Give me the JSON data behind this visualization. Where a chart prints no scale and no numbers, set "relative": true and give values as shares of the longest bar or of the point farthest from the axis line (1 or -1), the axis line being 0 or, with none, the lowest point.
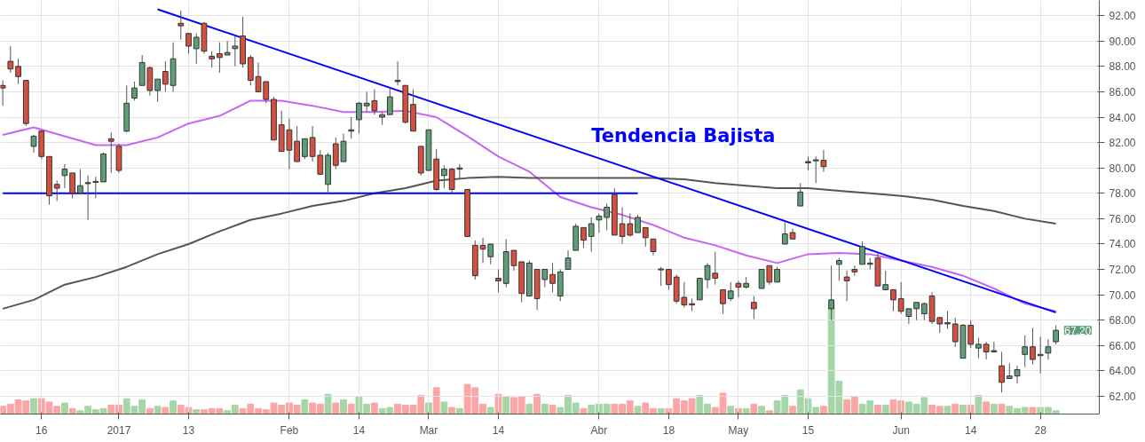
{
  "chart_data": [
    {
      "type": "candlestick",
      "categories": [
        null,
        null,
        null,
        null,
        null,
        "16",
        null,
        null,
        null,
        null,
        null,
        null,
        null,
        null,
        null,
        "2017",
        null,
        null,
        null,
        null,
        null,
        null,
        null,
        null,
        "13",
        null,
        null,
        null,
        null,
        null,
        null,
        null,
        null,
        null,
        null,
        null,
        null,
        "Feb",
        null,
        null,
        null,
        null,
        null,
        null,
        null,
        null,
        "14",
        null,
        null,
        null,
        null,
        null,
        null,
        null,
        null,
        "Mar",
        null,
        null,
        null,
        null,
        null,
        null,
        null,
        null,
        "14",
        null,
        null,
        null,
        null,
        null,
        null,
        null,
        null,
        null,
        null,
        null,
        null,
        "Abr",
        null,
        null,
        null,
        null,
        null,
        null,
        null,
        null,
        "18",
        null,
        null,
        null,
        null,
        null,
        null,
        null,
        null,
        "May",
        null,
        null,
        null,
        null,
        null,
        null,
        null,
        null,
        "15",
        null,
        null,
        null,
        null,
        null,
        null,
        null,
        null,
        null,
        null,
        null,
        "Jun",
        null,
        null,
        null,
        null,
        null,
        null,
        null,
        null,
        "14",
        null,
        null,
        null,
        null,
        null,
        null,
        null,
        null,
        "28",
        null,
        null
      ],
      "ohlc": [
        [
          86.5,
          86.9,
          84.9,
          86.3
        ],
        [
          88.4,
          89.6,
          87.5,
          87.8
        ],
        [
          88.0,
          88.6,
          86.6,
          87.2
        ],
        [
          86.9,
          86.9,
          83.3,
          83.5
        ],
        [
          81.7,
          82.6,
          81.2,
          82.5
        ],
        [
          82.9,
          82.9,
          80.7,
          80.9
        ],
        [
          80.9,
          80.9,
          77.1,
          77.8
        ],
        [
          78.7,
          79.0,
          77.4,
          78.4
        ],
        [
          79.4,
          80.3,
          78.4,
          79.9
        ],
        [
          79.6,
          79.6,
          77.6,
          78.0
        ],
        [
          78.0,
          79.9,
          77.9,
          78.6
        ],
        [
          78.8,
          79.4,
          75.9,
          78.8
        ],
        [
          78.9,
          79.3,
          77.6,
          78.9
        ],
        [
          78.9,
          81.2,
          78.9,
          81.1
        ],
        [
          82.3,
          82.8,
          79.6,
          82.1
        ],
        [
          81.7,
          81.9,
          79.6,
          79.8
        ],
        [
          82.9,
          86.5,
          82.8,
          85.1
        ],
        [
          85.5,
          86.8,
          85.3,
          86.3
        ],
        [
          86.5,
          88.9,
          86.5,
          88.3
        ],
        [
          87.9,
          88.0,
          85.7,
          86.1
        ],
        [
          86.1,
          87.0,
          85.2,
          87.0
        ],
        [
          87.6,
          88.4,
          86.0,
          86.6
        ],
        [
          86.5,
          89.9,
          86.0,
          88.6
        ],
        [
          91.4,
          92.4,
          90.1,
          91.2
        ],
        [
          90.6,
          90.6,
          89.0,
          89.6
        ],
        [
          89.4,
          90.6,
          88.2,
          90.3
        ],
        [
          91.4,
          91.5,
          89.0,
          89.2
        ],
        [
          88.8,
          89.2,
          87.9,
          88.6
        ],
        [
          89.0,
          89.9,
          87.5,
          88.7
        ],
        [
          88.9,
          90.0,
          88.9,
          89.1
        ],
        [
          89.4,
          90.4,
          88.0,
          89.6
        ],
        [
          90.4,
          91.9,
          87.9,
          88.2
        ],
        [
          88.7,
          88.9,
          86.5,
          86.9
        ],
        [
          87.2,
          88.3,
          86.0,
          86.0
        ],
        [
          86.8,
          86.8,
          85.1,
          85.4
        ],
        [
          85.4,
          85.6,
          82.2,
          82.2
        ],
        [
          83.4,
          84.5,
          81.3,
          81.3
        ],
        [
          83.0,
          83.9,
          79.9,
          81.4
        ],
        [
          82.1,
          83.3,
          80.5,
          80.5
        ],
        [
          80.9,
          82.3,
          80.7,
          82.3
        ],
        [
          82.4,
          83.3,
          80.5,
          80.9
        ],
        [
          81.0,
          81.4,
          79.5,
          79.5
        ],
        [
          78.7,
          81.2,
          78.0,
          81.0
        ],
        [
          81.9,
          82.4,
          79.9,
          80.2
        ],
        [
          80.5,
          82.7,
          80.5,
          82.1
        ],
        [
          83.0,
          84.0,
          82.3,
          82.9
        ],
        [
          83.8,
          85.2,
          82.7,
          85.1
        ],
        [
          84.9,
          86.0,
          84.4,
          85.1
        ],
        [
          85.3,
          86.2,
          84.2,
          84.5
        ],
        [
          84.0,
          84.4,
          83.4,
          84.2
        ],
        [
          84.2,
          86.3,
          84.2,
          85.6
        ],
        [
          86.9,
          88.4,
          86.5,
          86.8
        ],
        [
          86.5,
          86.5,
          83.5,
          83.6
        ],
        [
          85.0,
          86.2,
          82.9,
          82.9
        ],
        [
          81.7,
          81.7,
          79.4,
          79.6
        ],
        [
          79.8,
          83.0,
          79.8,
          83.0
        ],
        [
          80.7,
          81.5,
          78.2,
          78.3
        ],
        [
          79.4,
          80.2,
          78.4,
          79.9
        ],
        [
          79.9,
          80.0,
          78.0,
          78.3
        ],
        [
          79.9,
          80.3,
          79.1,
          80.0
        ],
        [
          78.3,
          78.3,
          74.6,
          74.6
        ],
        [
          73.9,
          74.3,
          71.2,
          71.5
        ],
        [
          73.9,
          74.5,
          72.5,
          73.6
        ],
        [
          73.0,
          74.0,
          72.4,
          74.0
        ],
        [
          71.3,
          72.0,
          70.2,
          71.1
        ],
        [
          70.9,
          74.4,
          70.6,
          73.4
        ],
        [
          73.5,
          73.5,
          71.9,
          72.3
        ],
        [
          72.6,
          72.6,
          69.4,
          70.1
        ],
        [
          69.9,
          72.7,
          69.9,
          72.5
        ],
        [
          72.0,
          72.0,
          68.8,
          69.7
        ],
        [
          71.2,
          72.0,
          70.6,
          72.0
        ],
        [
          71.6,
          72.5,
          70.2,
          70.9
        ],
        [
          69.9,
          72.0,
          69.5,
          71.8
        ],
        [
          72.0,
          73.5,
          72.0,
          72.9
        ],
        [
          73.5,
          75.6,
          73.5,
          75.4
        ],
        [
          75.3,
          75.3,
          73.7,
          74.3
        ],
        [
          74.6,
          76.1,
          73.4,
          75.6
        ],
        [
          75.9,
          76.4,
          74.9,
          76.2
        ],
        [
          76.1,
          77.2,
          75.1,
          76.9
        ],
        [
          77.9,
          78.4,
          74.7,
          74.7
        ],
        [
          75.6,
          76.9,
          74.0,
          74.6
        ],
        [
          75.6,
          76.4,
          74.6,
          74.7
        ],
        [
          74.9,
          76.3,
          74.9,
          76.1
        ],
        [
          75.3,
          75.3,
          73.8,
          74.5
        ],
        [
          74.4,
          74.4,
          73.1,
          73.4
        ],
        [
          72.0,
          72.2,
          70.7,
          72.0
        ],
        [
          72.0,
          72.0,
          70.4,
          70.8
        ],
        [
          71.4,
          71.6,
          69.3,
          69.5
        ],
        [
          69.8,
          71.0,
          69.0,
          69.2
        ],
        [
          69.3,
          69.7,
          68.7,
          69.2
        ],
        [
          69.6,
          71.3,
          69.6,
          71.3
        ],
        [
          71.2,
          72.5,
          70.5,
          72.3
        ],
        [
          71.7,
          73.4,
          70.8,
          71.3
        ],
        [
          70.4,
          70.4,
          68.5,
          69.3
        ],
        [
          69.7,
          71.0,
          69.5,
          70.3
        ],
        [
          70.9,
          71.1,
          69.8,
          70.6
        ],
        [
          70.6,
          71.4,
          70.5,
          70.9
        ],
        [
          69.4,
          69.9,
          68.1,
          68.9
        ],
        [
          70.5,
          72.0,
          70.5,
          72.0
        ],
        [
          72.3,
          72.3,
          70.8,
          71.0
        ],
        [
          71.0,
          72.2,
          71.0,
          72.0
        ],
        [
          74.0,
          75.7,
          74.0,
          74.8
        ],
        [
          74.9,
          75.2,
          74.4,
          74.4
        ],
        [
          77.0,
          78.8,
          77.0,
          78.1
        ],
        [
          80.4,
          80.9,
          79.8,
          80.5
        ],
        [
          80.6,
          80.9,
          78.8,
          80.6
        ],
        [
          80.6,
          81.4,
          79.7,
          80.1
        ],
        [
          68.9,
          72.3,
          68.0,
          69.6
        ],
        [
          72.4,
          72.9,
          71.1,
          72.7
        ],
        [
          71.4,
          71.9,
          69.5,
          71.1
        ],
        [
          72.0,
          72.3,
          71.5,
          71.8
        ],
        [
          72.4,
          74.2,
          72.4,
          73.8
        ],
        [
          72.4,
          72.9,
          72.0,
          72.5
        ],
        [
          72.9,
          73.4,
          70.7,
          70.7
        ],
        [
          70.4,
          71.9,
          70.4,
          70.8
        ],
        [
          70.4,
          70.4,
          68.7,
          69.6
        ],
        [
          69.7,
          71.0,
          68.5,
          68.7
        ],
        [
          68.3,
          68.9,
          67.7,
          68.9
        ],
        [
          68.9,
          69.4,
          68.0,
          69.4
        ],
        [
          68.5,
          69.4,
          68.0,
          69.3
        ],
        [
          69.9,
          70.2,
          67.7,
          67.9
        ],
        [
          68.2,
          68.2,
          67.0,
          67.7
        ],
        [
          67.7,
          68.7,
          67.3,
          67.8
        ],
        [
          67.7,
          68.2,
          65.9,
          66.3
        ],
        [
          65.0,
          67.7,
          65.0,
          67.6
        ],
        [
          67.6,
          68.0,
          65.8,
          66.1
        ],
        [
          65.8,
          66.6,
          65.0,
          66.1
        ],
        [
          66.1,
          66.3,
          64.9,
          65.5
        ],
        [
          65.5,
          66.3,
          65.5,
          65.6
        ],
        [
          64.4,
          65.5,
          62.3,
          63.1
        ],
        [
          63.4,
          64.6,
          63.4,
          63.6
        ],
        [
          63.6,
          64.4,
          63.0,
          64.1
        ],
        [
          65.3,
          66.8,
          64.3,
          65.9
        ],
        [
          65.9,
          67.4,
          64.5,
          64.9
        ],
        [
          65.2,
          66.7,
          63.8,
          65.3
        ],
        [
          65.4,
          66.5,
          64.9,
          65.9
        ],
        [
          66.3,
          67.6,
          66.1,
          67.2
        ]
      ],
      "colors": [
        "#d6503f",
        "#d6503f",
        "#d6503f",
        "#d6503f",
        "#5f9e76",
        "#d6503f",
        "#d6503f",
        "#d6503f",
        "#5f9e76",
        "#d6503f",
        "#5f9e76",
        "#5f9e76",
        "#5f9e76",
        "#5f9e76",
        "#d6503f",
        "#d6503f",
        "#5f9e76",
        "#5f9e76",
        "#5f9e76",
        "#d6503f",
        "#5f9e76",
        "#d6503f",
        "#5f9e76",
        "#d6503f",
        "#d6503f",
        "#5f9e76",
        "#d6503f",
        "#d6503f",
        "#d6503f",
        "#5f9e76",
        "#5f9e76",
        "#d6503f",
        "#d6503f",
        "#d6503f",
        "#d6503f",
        "#d6503f",
        "#d6503f",
        "#d6503f",
        "#d6503f",
        "#5f9e76",
        "#d6503f",
        "#d6503f",
        "#5f9e76",
        "#d6503f",
        "#5f9e76",
        "#d6503f",
        "#5f9e76",
        "#5f9e76",
        "#d6503f",
        "#5f9e76",
        "#5f9e76",
        "#d6503f",
        "#d6503f",
        "#d6503f",
        "#d6503f",
        "#5f9e76",
        "#d6503f",
        "#5f9e76",
        "#d6503f",
        "#5f9e76",
        "#d6503f",
        "#d6503f",
        "#d6503f",
        "#5f9e76",
        "#d6503f",
        "#5f9e76",
        "#d6503f",
        "#d6503f",
        "#5f9e76",
        "#d6503f",
        "#5f9e76",
        "#d6503f",
        "#5f9e76",
        "#5f9e76",
        "#5f9e76",
        "#d6503f",
        "#5f9e76",
        "#5f9e76",
        "#5f9e76",
        "#d6503f",
        "#d6503f",
        "#d6503f",
        "#5f9e76",
        "#d6503f",
        "#d6503f",
        "#5f9e76",
        "#d6503f",
        "#d6503f",
        "#d6503f",
        "#d6503f",
        "#5f9e76",
        "#5f9e76",
        "#d6503f",
        "#d6503f",
        "#5f9e76",
        "#d6503f",
        "#5f9e76",
        "#d6503f",
        "#5f9e76",
        "#d6503f",
        "#5f9e76",
        "#5f9e76",
        "#d6503f",
        "#5f9e76",
        "#5f9e76",
        "#5f9e76",
        "#d6503f",
        "#5f9e76",
        "#5f9e76",
        "#d6503f",
        "#d6503f",
        "#5f9e76",
        "#5f9e76",
        "#d6503f",
        "#5f9e76",
        "#d6503f",
        "#d6503f",
        "#5f9e76",
        "#5f9e76",
        "#5f9e76",
        "#d6503f",
        "#d6503f",
        "#5f9e76",
        "#d6503f",
        "#5f9e76",
        "#d6503f",
        "#5f9e76",
        "#d6503f",
        "#5f9e76",
        "#d6503f",
        "#5f9e76",
        "#5f9e76",
        "#5f9e76",
        "#d6503f",
        "#5f9e76",
        "#5f9e76",
        "#5f9e76"
      ],
      "series": [
        {
          "type": "line",
          "color": "#c466f2",
          "values": [
            82.6,
            null,
            null,
            null,
            83.2,
            null,
            null,
            null,
            82.5,
            null,
            null,
            null,
            81.8,
            null,
            null,
            null,
            81.8,
            null,
            null,
            null,
            82.4,
            null,
            null,
            null,
            83.5,
            null,
            null,
            null,
            84.1,
            null,
            null,
            null,
            85.3,
            null,
            null,
            null,
            85.3,
            null,
            null,
            null,
            84.9,
            null,
            null,
            null,
            84.4,
            null,
            null,
            null,
            84.4,
            null,
            null,
            null,
            84.5,
            null,
            null,
            null,
            84.0,
            null,
            null,
            null,
            82.5,
            null,
            null,
            null,
            80.9,
            null,
            null,
            null,
            79.7,
            null,
            null,
            null,
            77.7,
            null,
            null,
            null,
            76.9,
            null,
            null,
            null,
            76.3,
            null,
            null,
            null,
            75.5,
            null,
            null,
            null,
            74.5,
            null,
            null,
            null,
            73.9,
            null,
            null,
            null,
            73.1,
            null,
            null,
            null,
            72.5,
            null,
            null,
            null,
            73.2,
            null,
            null,
            null,
            73.3,
            null,
            null,
            null,
            73.2,
            null,
            null,
            null,
            72.7,
            null,
            null,
            null,
            72.2,
            null,
            null,
            null,
            71.5,
            null,
            null,
            null,
            70.5,
            null,
            null,
            null,
            69.3,
            null,
            null,
            null,
            68.7
          ]
        },
        {
          "type": "line",
          "color": "#555555",
          "values": [
            68.9,
            null,
            null,
            null,
            69.6,
            null,
            null,
            null,
            70.8,
            null,
            null,
            null,
            71.4,
            null,
            null,
            null,
            72.2,
            null,
            null,
            null,
            73.2,
            null,
            null,
            null,
            74.0,
            null,
            null,
            null,
            75.0,
            null,
            null,
            null,
            75.9,
            null,
            null,
            null,
            76.4,
            null,
            null,
            null,
            77.0,
            null,
            null,
            null,
            77.4,
            null,
            null,
            null,
            78.0,
            null,
            null,
            null,
            78.4,
            null,
            null,
            null,
            79.0,
            null,
            null,
            null,
            79.2,
            null,
            null,
            null,
            79.3,
            null,
            null,
            null,
            79.2,
            null,
            null,
            null,
            79.2,
            null,
            null,
            null,
            79.2,
            null,
            null,
            null,
            79.2,
            null,
            null,
            null,
            79.2,
            null,
            null,
            null,
            79.1,
            null,
            null,
            null,
            78.8,
            null,
            null,
            null,
            78.6,
            null,
            null,
            null,
            78.4,
            null,
            null,
            null,
            78.4,
            null,
            null,
            null,
            78.2,
            null,
            null,
            null,
            78.0,
            null,
            null,
            null,
            77.8,
            null,
            null,
            null,
            77.5,
            null,
            null,
            null,
            77.0,
            null,
            null,
            null,
            76.6,
            null,
            null,
            null,
            76.0,
            null,
            null,
            null,
            75.6
          ]
        },
        {
          "type": "line",
          "color": "#0000ff",
          "values": [
            null,
            null,
            null,
            null,
            null,
            null,
            null,
            null,
            null,
            null,
            null,
            null,
            null,
            null,
            null,
            null,
            null,
            null,
            null,
            null,
            92.5,
            null,
            null,
            null,
            null,
            null,
            null,
            null,
            null,
            null,
            null,
            null,
            null,
            null,
            null,
            null,
            null,
            null,
            null,
            null,
            null,
            null,
            null,
            null,
            null,
            null,
            null,
            null,
            null,
            null,
            null,
            null,
            null,
            null,
            null,
            null,
            null,
            null,
            null,
            null,
            null,
            null,
            null,
            null,
            null,
            null,
            null,
            null,
            null,
            null,
            null,
            null,
            null,
            null,
            null,
            null,
            null,
            null,
            null,
            null,
            null,
            null,
            null,
            null,
            null,
            null,
            null,
            null,
            null,
            null,
            null,
            null,
            null,
            null,
            null,
            null,
            null,
            null,
            null,
            null,
            null,
            null,
            null,
            null,
            null,
            null,
            null,
            null,
            null,
            null,
            null,
            null,
            null,
            null,
            null,
            null,
            null,
            null,
            null,
            null,
            null,
            null,
            null,
            null,
            null,
            null,
            null,
            null,
            null,
            null,
            null,
            null,
            null,
            null,
            null,
            null,
            68.6
          ]
        },
        {
          "type": "line",
          "color": "#0000ff",
          "values": [
            78.0,
            null,
            null,
            null,
            null,
            null,
            null,
            null,
            null,
            null,
            null,
            null,
            null,
            null,
            null,
            null,
            null,
            null,
            null,
            null,
            null,
            null,
            null,
            null,
            null,
            null,
            null,
            null,
            null,
            null,
            null,
            null,
            null,
            null,
            null,
            null,
            null,
            null,
            null,
            null,
            null,
            null,
            null,
            null,
            null,
            null,
            null,
            null,
            null,
            null,
            null,
            null,
            null,
            null,
            null,
            null,
            null,
            null,
            null,
            null,
            null,
            null,
            null,
            null,
            null,
            null,
            null,
            null,
            null,
            null,
            null,
            null,
            null,
            null,
            null,
            null,
            null,
            null,
            null,
            null,
            null,
            null,
            78.0,
            null,
            null,
            null,
            null,
            null,
            null,
            null,
            null,
            null,
            null,
            null,
            null,
            null,
            null,
            null,
            null,
            null,
            null,
            null,
            null,
            null,
            null,
            null,
            null,
            null,
            null,
            null,
            null,
            null,
            null,
            null,
            null,
            null,
            null,
            null,
            null,
            null,
            null,
            null,
            null,
            null,
            null,
            null,
            null,
            null,
            null,
            null,
            null,
            null,
            null,
            null,
            null,
            null,
            null
          ]
        }
      ],
      "ylim": [
        60.6,
        93.2
      ],
      "yticks": [
        {
          "value": 62,
          "label": "62.00"
        },
        {
          "value": 64,
          "label": "64.00"
        },
        {
          "value": 66,
          "label": "66.00"
        },
        {
          "value": 68,
          "label": "68.00"
        },
        {
          "value": 70,
          "label": "70.00"
        },
        {
          "value": 72,
          "label": "72.00"
        },
        {
          "value": 74,
          "label": "74.00"
        },
        {
          "value": 76,
          "label": "76.00"
        },
        {
          "value": 78,
          "label": "78.00"
        },
        {
          "value": 80,
          "label": "80.00"
        },
        {
          "value": 82,
          "label": "82.00"
        },
        {
          "value": 84,
          "label": "84.00"
        },
        {
          "value": 86,
          "label": "86.00"
        },
        {
          "value": 88,
          "label": "88.00"
        },
        {
          "value": 90,
          "label": "90.00"
        },
        {
          "value": 92,
          "label": "92.00"
        }
      ],
      "grid": true,
      "annotations": [
        "Tendencia Bajista",
        "67.20"
      ]
    },
    {
      "type": "bar",
      "relative": true,
      "tick_labels": false,
      "categories": [
        null,
        null,
        null,
        null,
        null,
        null,
        null,
        null,
        null,
        null,
        null,
        null,
        null,
        null,
        null,
        null,
        null,
        null,
        null,
        null,
        null,
        null,
        null,
        null,
        null,
        null,
        null,
        null,
        null,
        null,
        null,
        null,
        null,
        null,
        null,
        null,
        null,
        null,
        null,
        null,
        null,
        null,
        null,
        null,
        null,
        null,
        null,
        null,
        null,
        null,
        null,
        null,
        null,
        null,
        null,
        null,
        null,
        null,
        null,
        null,
        null,
        null,
        null,
        null,
        null,
        null,
        null,
        null,
        null,
        null,
        null,
        null,
        null,
        null,
        null,
        null,
        null,
        null,
        null,
        null,
        null,
        null,
        null,
        null,
        null,
        null,
        null,
        null,
        null,
        null,
        null,
        null,
        null,
        null,
        null,
        null,
        null,
        null,
        null,
        null,
        null,
        null,
        null,
        null,
        null,
        null,
        null,
        null,
        null,
        null,
        null,
        null,
        null,
        null,
        null,
        null,
        null,
        null,
        null,
        null,
        null,
        null,
        null,
        null,
        null,
        null,
        null,
        null,
        null,
        null,
        null,
        null,
        null,
        null,
        null,
        null,
        null
      ],
      "values": [
        0.07,
        0.09,
        0.13,
        0.12,
        0.14,
        0.14,
        0.11,
        0.07,
        0.1,
        0.05,
        0.03,
        0.07,
        0.04,
        0.05,
        0.08,
        0.08,
        0.14,
        0.07,
        0.13,
        0.05,
        0.07,
        0.06,
        0.12,
        0.08,
        0.06,
        0.04,
        0.04,
        0.05,
        0.05,
        0.03,
        0.08,
        0.05,
        0.09,
        0.05,
        0.04,
        0.1,
        0.08,
        0.1,
        0.08,
        0.13,
        0.1,
        0.09,
        0.18,
        0.1,
        0.13,
        0.09,
        0.16,
        0.09,
        0.1,
        0.05,
        0.06,
        0.09,
        0.08,
        0.08,
        0.17,
        0.1,
        0.24,
        0.11,
        0.06,
        0.05,
        0.27,
        0.24,
        0.09,
        0.06,
        0.18,
        0.16,
        0.15,
        0.16,
        0.09,
        0.18,
        0.09,
        0.08,
        0.06,
        0.17,
        0.1,
        0.05,
        0.08,
        0.09,
        0.09,
        0.09,
        0.09,
        0.12,
        0.07,
        0.1,
        0.05,
        0.05,
        0.05,
        0.14,
        0.12,
        0.14,
        0.17,
        0.09,
        0.06,
        0.19,
        0.07,
        0.05,
        0.05,
        0.09,
        0.07,
        0.03,
        0.12,
        0.17,
        0.07,
        0.22,
        0.14,
        0.06,
        0.07,
        1,
        0.3,
        0.13,
        0.16,
        0.09,
        0.12,
        0.08,
        0.08,
        0.13,
        0.12,
        0.11,
        0.09,
        0.15,
        0.08,
        0.07,
        0.07,
        0.09,
        0.08,
        0.08,
        0.17,
        0.11,
        0.09,
        0.09,
        0.07,
        0.05,
        0.06,
        0.06,
        0.06,
        0.06,
        0.03
      ],
      "colors": [
        "#fba6a6",
        "#fba6a6",
        "#fba6a6",
        "#fba6a6",
        "#a6d6a8",
        "#fba6a6",
        "#fba6a6",
        "#fba6a6",
        "#a6d6a8",
        "#fba6a6",
        "#a6d6a8",
        "#a6d6a8",
        "#a6d6a8",
        "#a6d6a8",
        "#fba6a6",
        "#fba6a6",
        "#a6d6a8",
        "#a6d6a8",
        "#a6d6a8",
        "#fba6a6",
        "#a6d6a8",
        "#fba6a6",
        "#a6d6a8",
        "#fba6a6",
        "#fba6a6",
        "#a6d6a8",
        "#fba6a6",
        "#fba6a6",
        "#fba6a6",
        "#a6d6a8",
        "#a6d6a8",
        "#fba6a6",
        "#fba6a6",
        "#fba6a6",
        "#fba6a6",
        "#fba6a6",
        "#fba6a6",
        "#fba6a6",
        "#fba6a6",
        "#a6d6a8",
        "#fba6a6",
        "#fba6a6",
        "#a6d6a8",
        "#fba6a6",
        "#a6d6a8",
        "#fba6a6",
        "#a6d6a8",
        "#a6d6a8",
        "#fba6a6",
        "#a6d6a8",
        "#a6d6a8",
        "#fba6a6",
        "#fba6a6",
        "#fba6a6",
        "#fba6a6",
        "#a6d6a8",
        "#fba6a6",
        "#a6d6a8",
        "#fba6a6",
        "#a6d6a8",
        "#fba6a6",
        "#fba6a6",
        "#fba6a6",
        "#a6d6a8",
        "#fba6a6",
        "#a6d6a8",
        "#fba6a6",
        "#fba6a6",
        "#a6d6a8",
        "#fba6a6",
        "#a6d6a8",
        "#fba6a6",
        "#a6d6a8",
        "#a6d6a8",
        "#a6d6a8",
        "#fba6a6",
        "#a6d6a8",
        "#a6d6a8",
        "#a6d6a8",
        "#fba6a6",
        "#fba6a6",
        "#fba6a6",
        "#a6d6a8",
        "#fba6a6",
        "#fba6a6",
        "#a6d6a8",
        "#fba6a6",
        "#fba6a6",
        "#fba6a6",
        "#fba6a6",
        "#a6d6a8",
        "#a6d6a8",
        "#fba6a6",
        "#fba6a6",
        "#a6d6a8",
        "#fba6a6",
        "#a6d6a8",
        "#fba6a6",
        "#a6d6a8",
        "#fba6a6",
        "#a6d6a8",
        "#a6d6a8",
        "#fba6a6",
        "#a6d6a8",
        "#a6d6a8",
        "#a6d6a8",
        "#fba6a6",
        "#a6d6a8",
        "#a6d6a8",
        "#fba6a6",
        "#fba6a6",
        "#a6d6a8",
        "#a6d6a8",
        "#fba6a6",
        "#a6d6a8",
        "#fba6a6",
        "#fba6a6",
        "#a6d6a8",
        "#a6d6a8",
        "#a6d6a8",
        "#fba6a6",
        "#fba6a6",
        "#a6d6a8",
        "#fba6a6",
        "#a6d6a8",
        "#fba6a6",
        "#a6d6a8",
        "#fba6a6",
        "#a6d6a8",
        "#fba6a6",
        "#a6d6a8",
        "#a6d6a8",
        "#a6d6a8",
        "#fba6a6",
        "#a6d6a8",
        "#a6d6a8",
        "#a6d6a8"
      ]
    }
  ]
}
